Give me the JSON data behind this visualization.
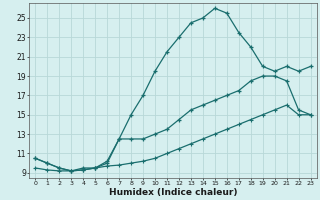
{
  "xlabel": "Humidex (Indice chaleur)",
  "bg_color": "#d6efef",
  "grid_color": "#b8d8d8",
  "line_color1": "#1a6e6e",
  "line_color2": "#1a6e6e",
  "line_color3": "#1a6e6e",
  "xlim": [
    -0.5,
    23.5
  ],
  "ylim": [
    8.5,
    26.5
  ],
  "xticks": [
    0,
    1,
    2,
    3,
    4,
    5,
    6,
    7,
    8,
    9,
    10,
    11,
    12,
    13,
    14,
    15,
    16,
    17,
    18,
    19,
    20,
    21,
    22,
    23
  ],
  "yticks": [
    9,
    11,
    13,
    15,
    17,
    19,
    21,
    23,
    25
  ],
  "line1_x": [
    0,
    1,
    2,
    3,
    4,
    5,
    6,
    7,
    8,
    9,
    10,
    11,
    12,
    13,
    14,
    15,
    16,
    17,
    18,
    19,
    20,
    21,
    22,
    23
  ],
  "line1_y": [
    10.5,
    10.0,
    9.5,
    9.2,
    9.3,
    9.5,
    10.0,
    12.5,
    15.0,
    17.0,
    19.5,
    21.5,
    23.0,
    24.5,
    25.0,
    26.0,
    25.5,
    23.5,
    22.0,
    20.0,
    19.5,
    20.0,
    19.5,
    20.0
  ],
  "line2_x": [
    0,
    1,
    2,
    3,
    4,
    5,
    6,
    7,
    8,
    9,
    10,
    11,
    12,
    13,
    14,
    15,
    16,
    17,
    18,
    19,
    20,
    21,
    22,
    23
  ],
  "line2_y": [
    10.5,
    10.0,
    9.5,
    9.2,
    9.5,
    9.5,
    10.2,
    12.5,
    12.5,
    12.5,
    13.0,
    13.5,
    14.5,
    15.5,
    16.0,
    16.5,
    17.0,
    17.5,
    18.5,
    19.0,
    19.0,
    18.5,
    15.5,
    15.0
  ],
  "line3_x": [
    0,
    1,
    2,
    3,
    4,
    5,
    6,
    7,
    8,
    9,
    10,
    11,
    12,
    13,
    14,
    15,
    16,
    17,
    18,
    19,
    20,
    21,
    22,
    23
  ],
  "line3_y": [
    9.5,
    9.3,
    9.2,
    9.2,
    9.3,
    9.5,
    9.7,
    9.8,
    10.0,
    10.2,
    10.5,
    11.0,
    11.5,
    12.0,
    12.5,
    13.0,
    13.5,
    14.0,
    14.5,
    15.0,
    15.5,
    16.0,
    15.0,
    15.0
  ]
}
